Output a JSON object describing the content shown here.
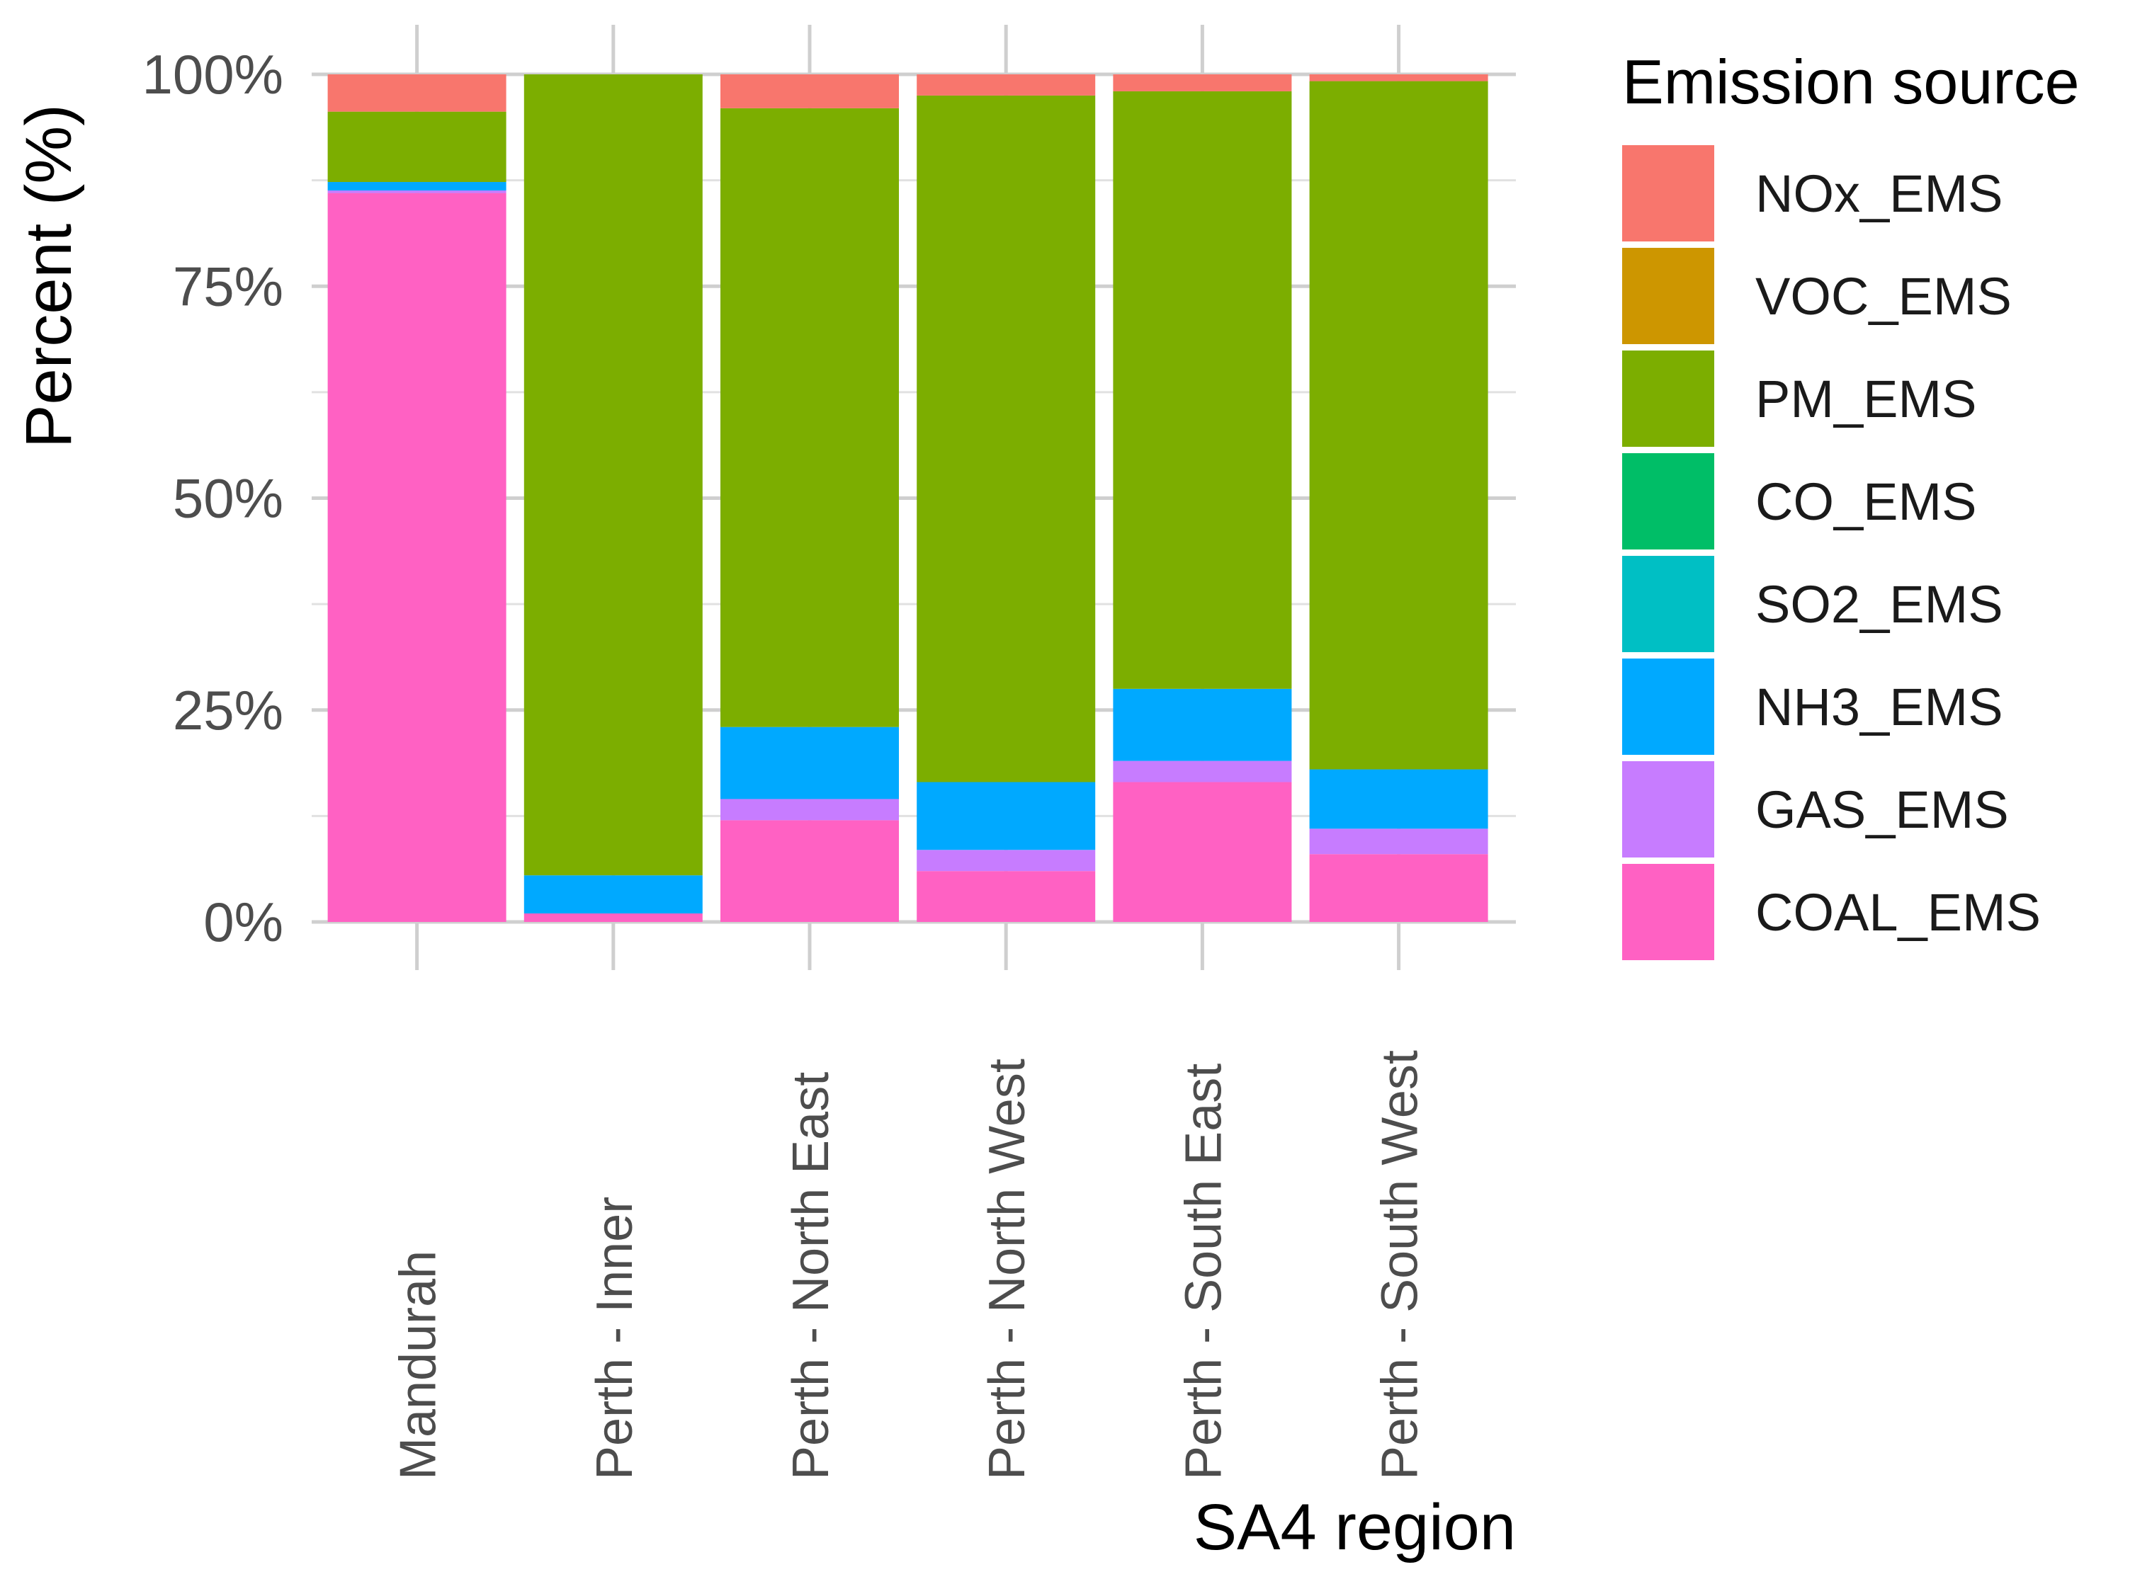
{
  "chart_data": {
    "type": "stacked-bar",
    "title": "",
    "xlabel": "SA4 region",
    "ylabel": "Percent (%)",
    "ylim": [
      0,
      100
    ],
    "y_ticks": [
      0,
      25,
      50,
      75,
      100
    ],
    "y_tick_labels": [
      "0%",
      "25%",
      "50%",
      "75%",
      "100%"
    ],
    "grid": true,
    "categories": [
      "Mandurah",
      "Perth - Inner",
      "Perth - North East",
      "Perth - North West",
      "Perth - South East",
      "Perth - South West"
    ],
    "series": [
      {
        "name": "COAL_EMS",
        "color": "#FF61C3",
        "values": [
          86.0,
          1.0,
          12.0,
          6.0,
          16.5,
          8.0
        ]
      },
      {
        "name": "GAS_EMS",
        "color": "#C77CFF",
        "values": [
          0.3,
          0.0,
          2.5,
          2.5,
          2.5,
          3.0
        ]
      },
      {
        "name": "NH3_EMS",
        "color": "#00A9FF",
        "values": [
          1.0,
          4.5,
          8.5,
          8.0,
          8.5,
          7.0
        ]
      },
      {
        "name": "SO2_EMS",
        "color": "#00BFC4",
        "values": [
          0,
          0,
          0,
          0,
          0,
          0
        ]
      },
      {
        "name": "CO_EMS",
        "color": "#00BE67",
        "values": [
          0,
          0,
          0,
          0,
          0,
          0
        ]
      },
      {
        "name": "PM_EMS",
        "color": "#7CAE00",
        "values": [
          8.3,
          94.5,
          73.0,
          81.0,
          70.5,
          81.2
        ]
      },
      {
        "name": "VOC_EMS",
        "color": "#CD9600",
        "values": [
          0,
          0,
          0,
          0,
          0,
          0
        ]
      },
      {
        "name": "NOx_EMS",
        "color": "#F8766D",
        "values": [
          4.4,
          0.0,
          4.0,
          2.5,
          2.0,
          0.8
        ]
      }
    ],
    "legend": {
      "title": "Emission source",
      "position": "right",
      "order": [
        "NOx_EMS",
        "VOC_EMS",
        "PM_EMS",
        "CO_EMS",
        "SO2_EMS",
        "NH3_EMS",
        "GAS_EMS",
        "COAL_EMS"
      ]
    }
  }
}
